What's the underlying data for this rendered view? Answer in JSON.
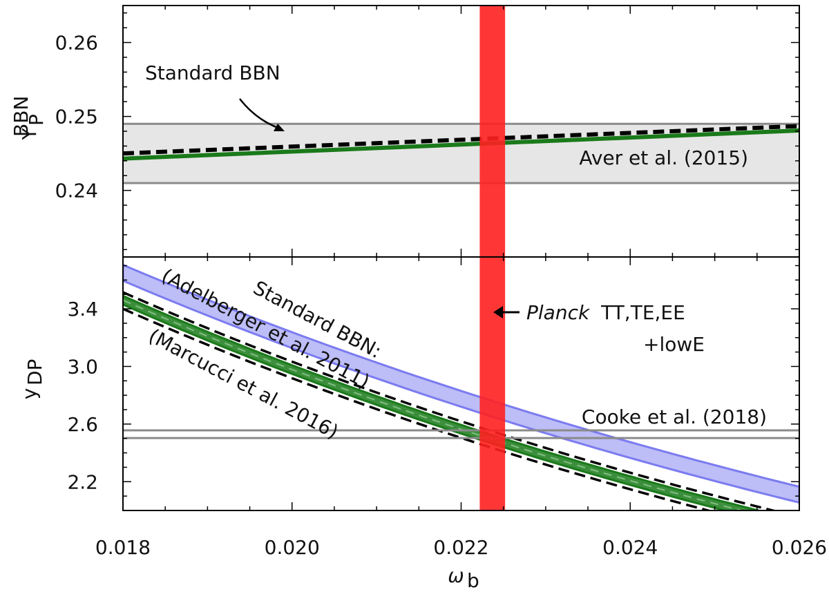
{
  "chart_data": [
    {
      "panel": "top",
      "type": "line",
      "ylabel_main": "Y",
      "ylabel_sub": "P",
      "ylabel_sup": "BBN",
      "xlim": [
        0.018,
        0.026
      ],
      "ylim": [
        0.231,
        0.265
      ],
      "yticks": [
        0.24,
        0.25,
        0.26
      ],
      "ytick_labels": [
        "0.24",
        "0.25",
        "0.26"
      ],
      "measurement": {
        "label": "Aver et al. (2015)",
        "low": 0.241,
        "high": 0.249,
        "color": "#e6e6e6",
        "edge": "#8a8a8a"
      },
      "series": [
        {
          "name": "Standard BBN (green)",
          "color": "#1a7a1a",
          "x": [
            0.018,
            0.026
          ],
          "y": [
            0.2443,
            0.2481
          ]
        },
        {
          "name": "Standard BBN (dashed)",
          "color": "#000000",
          "x": [
            0.018,
            0.026
          ],
          "y": [
            0.245,
            0.2487
          ]
        }
      ],
      "annotations": [
        {
          "text": "Standard BBN",
          "arrow_to": [
            0.02,
            0.2458
          ]
        }
      ]
    },
    {
      "panel": "bottom",
      "type": "area",
      "ylabel_main": "y",
      "ylabel_sub": "DP",
      "xlabel_main": "ω",
      "xlabel_sub": "b",
      "xlim": [
        0.018,
        0.026
      ],
      "ylim": [
        2.0,
        3.76
      ],
      "yticks": [
        2.2,
        2.6,
        3.0,
        3.4
      ],
      "ytick_labels": [
        "2.2",
        "2.6",
        "3.0",
        "3.4"
      ],
      "xticks": [
        0.018,
        0.02,
        0.022,
        0.024,
        0.026
      ],
      "xtick_labels": [
        "0.018",
        "0.020",
        "0.022",
        "0.024",
        "0.026"
      ],
      "measurement": {
        "label": "Cooke et al. (2018)",
        "low": 2.503,
        "high": 2.556,
        "edge": "#8a8a8a"
      },
      "series": [
        {
          "name": "Adelberger et al. 2011",
          "color": "#7b7bf0",
          "x": [
            0.018,
            0.02,
            0.022,
            0.024,
            0.026
          ],
          "y": [
            3.65,
            3.14,
            2.73,
            2.39,
            2.11
          ],
          "band_halfwidth": 0.055
        },
        {
          "name": "Marcucci et al. 2016",
          "color": "#1a7a1a",
          "x": [
            0.018,
            0.02,
            0.022,
            0.024,
            0.026
          ],
          "y": [
            3.46,
            2.94,
            2.52,
            2.18,
            1.9
          ],
          "band_halfwidth": 0.03
        }
      ],
      "annotations": [
        {
          "text": "Standard BBN:"
        },
        {
          "text": "(Adelberger et al. 2011)"
        },
        {
          "text": "(Marcucci et al. 2016)"
        }
      ]
    }
  ],
  "planck_band": {
    "label_italic": "Planck",
    "label_rest": "TT,TE,EE",
    "label_line2": "+lowE",
    "low": 0.02222,
    "high": 0.02252,
    "color": "#ff2020"
  }
}
